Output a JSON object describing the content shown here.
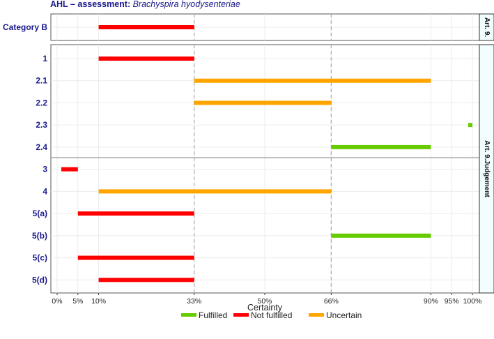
{
  "title": {
    "prefix": "AHL – assessment: ",
    "species": "Brachyspira hyodysenteriae"
  },
  "chart_data": {
    "type": "range-bar",
    "xlabel": "Certainty",
    "xlim": [
      0,
      100
    ],
    "x_ticks": [
      {
        "value": 0,
        "label": "0%"
      },
      {
        "value": 5,
        "label": "5%"
      },
      {
        "value": 10,
        "label": "10%"
      },
      {
        "value": 33,
        "label": "33%"
      },
      {
        "value": 50,
        "label": "50%"
      },
      {
        "value": 66,
        "label": "66%"
      },
      {
        "value": 90,
        "label": "90%"
      },
      {
        "value": 95,
        "label": "95%"
      },
      {
        "value": 100,
        "label": "100%"
      }
    ],
    "dashed_reference_lines": [
      33,
      66
    ],
    "colors": {
      "Fulfilled": "#66cc00",
      "Not fulfilled": "#ff0000",
      "Uncertain": "#ffa500"
    },
    "legend": {
      "position": "bottom",
      "entries": [
        "Fulfilled",
        "Not fulfilled",
        "Uncertain"
      ]
    },
    "panels": [
      {
        "strip": "Art. 9.",
        "rows": [
          {
            "label": "Category B",
            "start": 10,
            "end": 33,
            "status": "Not fulfilled"
          }
        ]
      },
      {
        "strip": "Art. 9.Judgement",
        "rows": [
          {
            "label": "1",
            "start": 10,
            "end": 33,
            "status": "Not fulfilled"
          },
          {
            "label": "2.1",
            "start": 33,
            "end": 90,
            "status": "Uncertain"
          },
          {
            "label": "2.2",
            "start": 33,
            "end": 66,
            "status": "Uncertain"
          },
          {
            "label": "2.3",
            "start": 99,
            "end": 100,
            "status": "Fulfilled"
          },
          {
            "label": "2.4",
            "start": 66,
            "end": 90,
            "status": "Fulfilled"
          },
          {
            "label": "3",
            "start": 1,
            "end": 5,
            "status": "Not fulfilled"
          },
          {
            "label": "4",
            "start": 10,
            "end": 66,
            "status": "Uncertain"
          },
          {
            "label": "5(a)",
            "start": 5,
            "end": 33,
            "status": "Not fulfilled"
          },
          {
            "label": "5(b)",
            "start": 66,
            "end": 90,
            "status": "Fulfilled"
          },
          {
            "label": "5(c)",
            "start": 5,
            "end": 33,
            "status": "Not fulfilled"
          },
          {
            "label": "5(d)",
            "start": 10,
            "end": 33,
            "status": "Not fulfilled"
          }
        ]
      }
    ]
  }
}
